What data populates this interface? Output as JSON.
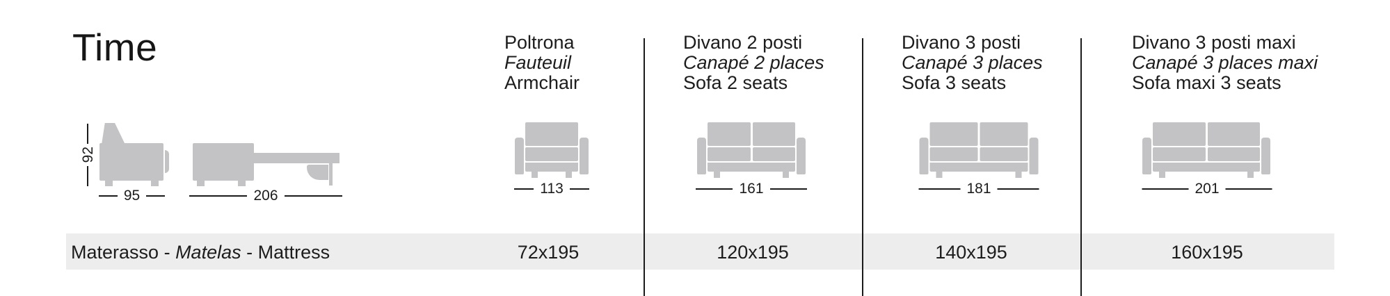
{
  "product": {
    "title": "Time"
  },
  "side_views": {
    "closed": {
      "height_label": "92",
      "depth_label": "95"
    },
    "open": {
      "depth_label": "206"
    }
  },
  "columns": [
    {
      "id": "armchair",
      "name_it": "Poltrona",
      "name_fr": "Fauteuil",
      "name_en": "Armchair",
      "width_label": "113",
      "mattress": "72x195"
    },
    {
      "id": "sofa-2-seats",
      "name_it": "Divano 2 posti",
      "name_fr": "Canapé 2 places",
      "name_en": "Sofa 2 seats",
      "width_label": "161",
      "mattress": "120x195"
    },
    {
      "id": "sofa-3-seats",
      "name_it": "Divano 3 posti",
      "name_fr": "Canapé 3 places",
      "name_en": "Sofa 3 seats",
      "width_label": "181",
      "mattress": "140x195"
    },
    {
      "id": "sofa-3-maxi",
      "name_it": "Divano 3 posti maxi",
      "name_fr": "Canapé 3 places maxi",
      "name_en": "Sofa maxi 3 seats",
      "width_label": "201",
      "mattress": "160x195"
    }
  ],
  "mattress_row": {
    "label_it": "Materasso",
    "label_fr": "Matelas",
    "label_en": "Mattress",
    "separator": " - "
  },
  "colors": {
    "icon_gray": "#c3c3c5",
    "band_background": "#ededee",
    "line": "#1a1a1a",
    "text": "#1c1c1c"
  }
}
